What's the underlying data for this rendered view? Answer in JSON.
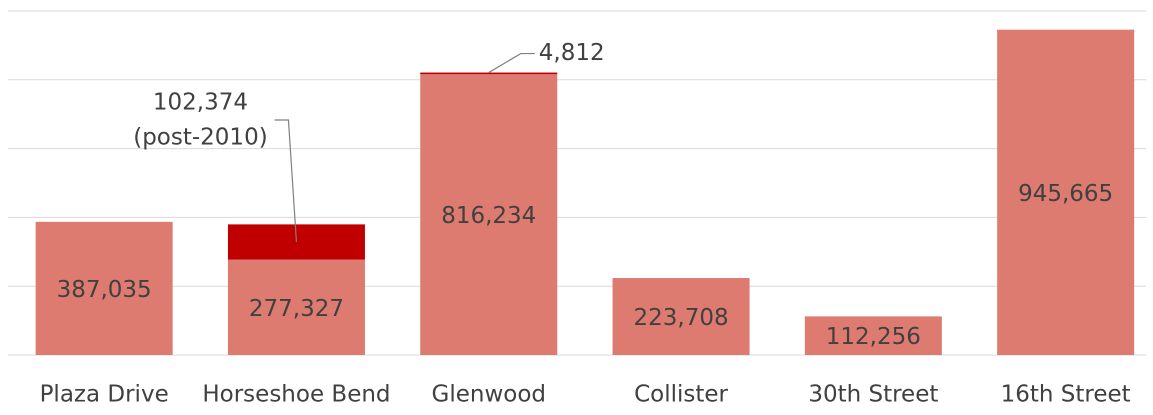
{
  "chart_data": {
    "type": "stacked_bar",
    "categories": [
      "Plaza Drive",
      "Horseshoe Bend",
      "Glenwood",
      "Collister",
      "30th Street",
      "16th Street"
    ],
    "series": [
      {
        "color": "#de7b70",
        "values": [
          387035,
          277327,
          816234,
          223708,
          112256,
          945665
        ],
        "value_labels": [
          "387,035",
          "277,327",
          "816,234",
          "223,708",
          "112,256",
          "945,665"
        ]
      },
      {
        "color": "#c00000",
        "values": [
          null,
          102374,
          4812,
          null,
          null,
          null
        ],
        "value_labels": [
          null,
          "102,374",
          "4,812",
          null,
          null,
          null
        ]
      }
    ],
    "annotations": [
      "(post-2010)"
    ],
    "ylim": [
      0,
      1000000
    ],
    "yticks": [
      0,
      200000,
      400000,
      600000,
      800000,
      1000000
    ],
    "grid": true
  }
}
